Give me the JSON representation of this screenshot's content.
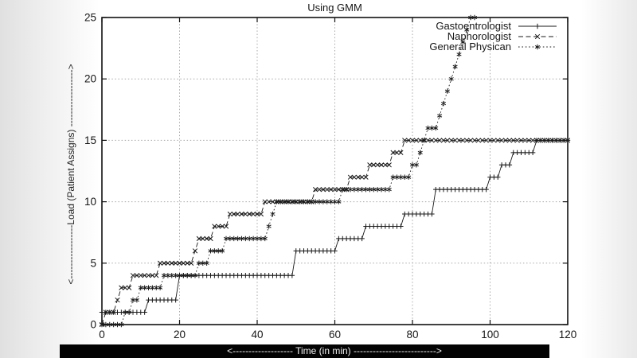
{
  "page": {
    "background_left_band": "#e7e7e7",
    "background_right_band": "#e9e9e9",
    "bottom_bar_color": "#030303",
    "bottom_bar_text_color": "#efefef"
  },
  "axis_labels": {
    "x_full": "<------------------- Time (in min)  -------------------------->",
    "y_full": "<-----------------Load (Patient Assigns) ------------------>"
  },
  "chart_data": {
    "type": "line",
    "title": "Using GMM",
    "xlabel": "Time (in min)",
    "ylabel": "Load (Patient Assigns)",
    "xlim": [
      0,
      120
    ],
    "ylim": [
      0,
      25
    ],
    "x_ticks": [
      0,
      20,
      40,
      60,
      80,
      100,
      120
    ],
    "y_ticks": [
      0,
      5,
      10,
      15,
      20,
      25
    ],
    "grid": true,
    "legend_position": "top-right-inside",
    "line_color": "#1a1a1a",
    "grid_color": "#a8a8a8",
    "sample_interval_minutes": 1,
    "series": [
      {
        "name": "Gastoentrologist",
        "marker": "plus",
        "line": "solid",
        "end": 120,
        "steps": [
          [
            0,
            1
          ],
          [
            12,
            2
          ],
          [
            20,
            4
          ],
          [
            50,
            6
          ],
          [
            61,
            7
          ],
          [
            67.5,
            8
          ],
          [
            77.5,
            9
          ],
          [
            86,
            11
          ],
          [
            100,
            12
          ],
          [
            103,
            13
          ],
          [
            106,
            14
          ],
          [
            112,
            15
          ]
        ]
      },
      {
        "name": "Naphorologist",
        "marker": "cross",
        "line": "dashed",
        "end": 120,
        "steps": [
          [
            0,
            0
          ],
          [
            1,
            1
          ],
          [
            3.5,
            2
          ],
          [
            4.5,
            3
          ],
          [
            8,
            4
          ],
          [
            15,
            5
          ],
          [
            23.5,
            6
          ],
          [
            24.5,
            7
          ],
          [
            28.5,
            8
          ],
          [
            32.5,
            9
          ],
          [
            41.5,
            10
          ],
          [
            55,
            11
          ],
          [
            64,
            12
          ],
          [
            69,
            13
          ],
          [
            74.5,
            14
          ],
          [
            78,
            15
          ]
        ]
      },
      {
        "name": "General Physican",
        "marker": "asterisk",
        "line": "dotted",
        "end": 96,
        "steps": [
          [
            0,
            0
          ],
          [
            6,
            1
          ],
          [
            7.5,
            2
          ],
          [
            10,
            3
          ],
          [
            16,
            4
          ],
          [
            25,
            5
          ],
          [
            27.5,
            6
          ],
          [
            31.5,
            7
          ],
          [
            42.5,
            8
          ],
          [
            43.5,
            9
          ],
          [
            44.5,
            10
          ],
          [
            61.5,
            11
          ],
          [
            75,
            12
          ],
          [
            80,
            13
          ],
          [
            82,
            14
          ],
          [
            83,
            15
          ],
          [
            83.5,
            16
          ],
          [
            86.5,
            17
          ],
          [
            88,
            18
          ],
          [
            89,
            19
          ],
          [
            90,
            20
          ],
          [
            91,
            21
          ],
          [
            92,
            22
          ],
          [
            93,
            23
          ],
          [
            94,
            24
          ],
          [
            94.5,
            25
          ]
        ]
      }
    ]
  }
}
